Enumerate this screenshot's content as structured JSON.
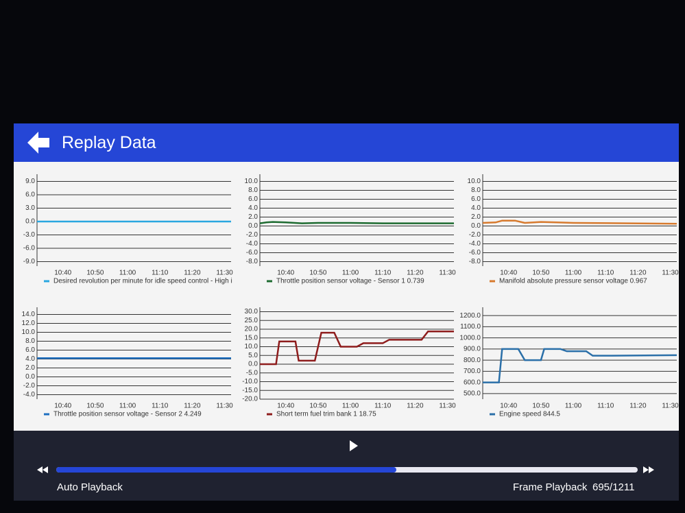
{
  "header": {
    "title": "Replay Data"
  },
  "chart_data": [
    {
      "type": "line",
      "x": [
        632,
        692
      ],
      "xlim": [
        632,
        692
      ],
      "xticks": [
        {
          "value": 640,
          "label": "10:40"
        },
        {
          "value": 650,
          "label": "10:50"
        },
        {
          "value": 660,
          "label": "11:00"
        },
        {
          "value": 670,
          "label": "11:10"
        },
        {
          "value": 680,
          "label": "11:20"
        },
        {
          "value": 690,
          "label": "11:30"
        }
      ],
      "ylim": [
        -10,
        10
      ],
      "yticks": [
        {
          "value": 9,
          "label": "9.0"
        },
        {
          "value": 6,
          "label": "6.0"
        },
        {
          "value": 3,
          "label": "3.0"
        },
        {
          "value": 0,
          "label": "0.0"
        },
        {
          "value": -3,
          "label": "-3.0"
        },
        {
          "value": -6,
          "label": "-6.0"
        },
        {
          "value": -9,
          "label": "-9.0"
        }
      ],
      "grid": true,
      "series": [
        {
          "name": "Desired revolution per minute for idle speed control - High i",
          "color": "#2aa7e0",
          "values": [
            0,
            0
          ]
        }
      ]
    },
    {
      "type": "line",
      "x": [
        632,
        634,
        636,
        640,
        645,
        650,
        660,
        670,
        680,
        692
      ],
      "xlim": [
        632,
        692
      ],
      "xticks": [
        {
          "value": 640,
          "label": "10:40"
        },
        {
          "value": 650,
          "label": "10:50"
        },
        {
          "value": 660,
          "label": "11:00"
        },
        {
          "value": 670,
          "label": "11:10"
        },
        {
          "value": 680,
          "label": "11:20"
        },
        {
          "value": 690,
          "label": "11:30"
        }
      ],
      "ylim": [
        -9,
        11
      ],
      "yticks": [
        {
          "value": 10,
          "label": "10.0"
        },
        {
          "value": 8,
          "label": "8.0"
        },
        {
          "value": 6,
          "label": "6.0"
        },
        {
          "value": 4,
          "label": "4.0"
        },
        {
          "value": 2,
          "label": "2.0"
        },
        {
          "value": 0,
          "label": "0.0"
        },
        {
          "value": -2,
          "label": "-2.0"
        },
        {
          "value": -4,
          "label": "-4.0"
        },
        {
          "value": -6,
          "label": "-6.0"
        },
        {
          "value": -8,
          "label": "-8.0"
        }
      ],
      "grid": true,
      "series": [
        {
          "name": "Throttle position sensor voltage - Sensor 1 0.739",
          "color": "#1d6b30",
          "values": [
            0.6,
            0.8,
            0.9,
            0.8,
            0.6,
            0.7,
            0.7,
            0.6,
            0.6,
            0.6
          ]
        }
      ]
    },
    {
      "type": "line",
      "x": [
        632,
        636,
        638,
        642,
        645,
        650,
        655,
        660,
        692
      ],
      "xlim": [
        632,
        692
      ],
      "xticks": [
        {
          "value": 640,
          "label": "10:40"
        },
        {
          "value": 650,
          "label": "10:50"
        },
        {
          "value": 660,
          "label": "11:00"
        },
        {
          "value": 670,
          "label": "11:10"
        },
        {
          "value": 680,
          "label": "11:20"
        },
        {
          "value": 690,
          "label": "11:30"
        }
      ],
      "ylim": [
        -9,
        11
      ],
      "yticks": [
        {
          "value": 10,
          "label": "10.0"
        },
        {
          "value": 8,
          "label": "8.0"
        },
        {
          "value": 6,
          "label": "6.0"
        },
        {
          "value": 4,
          "label": "4.0"
        },
        {
          "value": 2,
          "label": "2.0"
        },
        {
          "value": 0,
          "label": "0.0"
        },
        {
          "value": -2,
          "label": "-2.0"
        },
        {
          "value": -4,
          "label": "-4.0"
        },
        {
          "value": -6,
          "label": "-6.0"
        },
        {
          "value": -8,
          "label": "-8.0"
        }
      ],
      "grid": true,
      "series": [
        {
          "name": "Manifold absolute pressure sensor voltage 0.967",
          "color": "#d77a2e",
          "values": [
            0.7,
            0.8,
            1.2,
            1.2,
            0.7,
            0.9,
            0.8,
            0.7,
            0.5
          ]
        }
      ]
    },
    {
      "type": "line",
      "x": [
        632,
        692
      ],
      "xlim": [
        632,
        692
      ],
      "xticks": [
        {
          "value": 640,
          "label": "10:40"
        },
        {
          "value": 650,
          "label": "10:50"
        },
        {
          "value": 660,
          "label": "11:00"
        },
        {
          "value": 670,
          "label": "11:10"
        },
        {
          "value": 680,
          "label": "11:20"
        },
        {
          "value": 690,
          "label": "11:30"
        }
      ],
      "ylim": [
        -5,
        15
      ],
      "yticks": [
        {
          "value": 14,
          "label": "14.0"
        },
        {
          "value": 12,
          "label": "12.0"
        },
        {
          "value": 10,
          "label": "10.0"
        },
        {
          "value": 8,
          "label": "8.0"
        },
        {
          "value": 6,
          "label": "6.0"
        },
        {
          "value": 4,
          "label": "4.0"
        },
        {
          "value": 2,
          "label": "2.0"
        },
        {
          "value": 0,
          "label": "0.0"
        },
        {
          "value": -2,
          "label": "-2.0"
        },
        {
          "value": -4,
          "label": "-4.0"
        }
      ],
      "grid": true,
      "series": [
        {
          "name": "Throttle position sensor voltage - Sensor 2 4.249",
          "color": "#1e6fc0",
          "values": [
            4.2,
            4.2
          ]
        }
      ]
    },
    {
      "type": "line",
      "x": [
        632,
        637,
        638,
        643,
        644,
        649,
        651,
        655,
        657,
        662,
        664,
        670,
        672,
        682,
        684,
        692
      ],
      "xlim": [
        632,
        692
      ],
      "xticks": [
        {
          "value": 640,
          "label": "10:40"
        },
        {
          "value": 650,
          "label": "10:50"
        },
        {
          "value": 660,
          "label": "11:00"
        },
        {
          "value": 670,
          "label": "11:10"
        },
        {
          "value": 680,
          "label": "11:20"
        },
        {
          "value": 690,
          "label": "11:30"
        }
      ],
      "ylim": [
        -20,
        31
      ],
      "yticks": [
        {
          "value": 30,
          "label": "30.0"
        },
        {
          "value": 25,
          "label": "25.0"
        },
        {
          "value": 20,
          "label": "20.0"
        },
        {
          "value": 15,
          "label": "15.0"
        },
        {
          "value": 10,
          "label": "10.0"
        },
        {
          "value": 5,
          "label": "5.0"
        },
        {
          "value": 0,
          "label": "0.0"
        },
        {
          "value": -5,
          "label": "-5.0"
        },
        {
          "value": -10,
          "label": "-10.0"
        },
        {
          "value": -15,
          "label": "-15.0"
        },
        {
          "value": -20,
          "label": "-20.0"
        }
      ],
      "grid": true,
      "series": [
        {
          "name": "Short term fuel trim bank 1 18.75",
          "color": "#8e1c1c",
          "values": [
            0,
            0,
            13,
            13,
            2,
            2,
            18,
            18,
            10,
            10,
            12,
            12,
            14,
            14,
            18.75,
            18.75
          ]
        }
      ]
    },
    {
      "type": "line",
      "x": [
        632,
        637,
        638,
        643,
        645,
        650,
        651,
        656,
        658,
        664,
        666,
        672,
        692
      ],
      "xlim": [
        632,
        692
      ],
      "xticks": [
        {
          "value": 640,
          "label": "10:40"
        },
        {
          "value": 650,
          "label": "10:50"
        },
        {
          "value": 660,
          "label": "11:00"
        },
        {
          "value": 670,
          "label": "11:10"
        },
        {
          "value": 680,
          "label": "11:20"
        },
        {
          "value": 690,
          "label": "11:30"
        }
      ],
      "ylim": [
        450,
        1250
      ],
      "yticks": [
        {
          "value": 1200,
          "label": "1200.0"
        },
        {
          "value": 1100,
          "label": "1100.0"
        },
        {
          "value": 1000,
          "label": "1000.0"
        },
        {
          "value": 900,
          "label": "900.0"
        },
        {
          "value": 800,
          "label": "800.0"
        },
        {
          "value": 700,
          "label": "700.0"
        },
        {
          "value": 600,
          "label": "600.0"
        },
        {
          "value": 500,
          "label": "500.0"
        }
      ],
      "grid": true,
      "series": [
        {
          "name": "Engine speed 844.5",
          "color": "#2a6fa8",
          "values": [
            600,
            600,
            900,
            900,
            800,
            800,
            900,
            900,
            880,
            880,
            840,
            840,
            844.5
          ]
        }
      ]
    }
  ],
  "footer": {
    "mode": "Auto Playback",
    "frame_label": "Frame Playback",
    "frame": "695/1211"
  }
}
